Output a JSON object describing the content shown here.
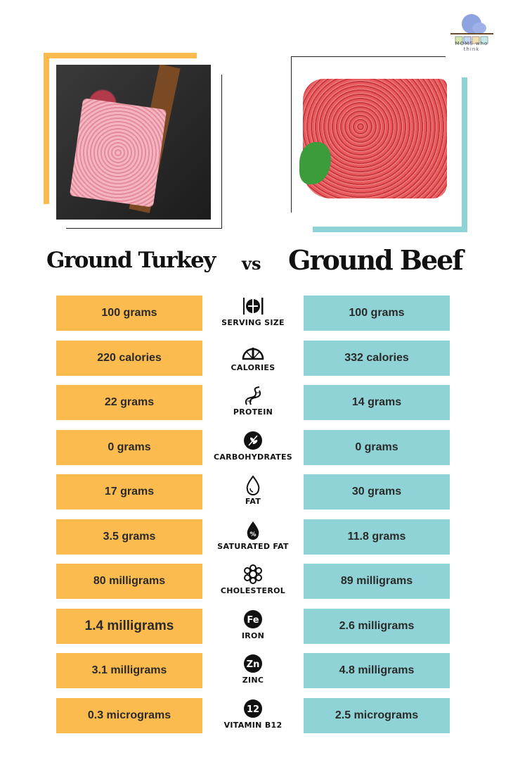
{
  "logo": {
    "text": "MOMS who think"
  },
  "titles": {
    "left": "Ground Turkey",
    "vs": "vs",
    "right": "Ground Beef"
  },
  "colors": {
    "turkey": "#fbbb4f",
    "beef": "#8fd3d6"
  },
  "rows": [
    {
      "label": "SERVING SIZE",
      "icon": "plate-cutlery-icon",
      "turkey": "100 grams",
      "beef": "100 grams"
    },
    {
      "label": "CALORIES",
      "icon": "gauge-icon",
      "turkey": "220 calories",
      "beef": "332 calories"
    },
    {
      "label": "PROTEIN",
      "icon": "dna-protein-icon",
      "turkey": "22 grams",
      "beef": "14 grams"
    },
    {
      "label": "CARBOHYDRATES",
      "icon": "wheat-icon",
      "turkey": "0 grams",
      "beef": "0 grams"
    },
    {
      "label": "FAT",
      "icon": "drop-icon",
      "turkey": "17 grams",
      "beef": "30 grams"
    },
    {
      "label": "SATURATED FAT",
      "icon": "drop-percent-icon",
      "turkey": "3.5 grams",
      "beef": "11.8 grams"
    },
    {
      "label": "CHOLESTEROL",
      "icon": "molecule-icon",
      "turkey": "80 milligrams",
      "beef": "89 milligrams"
    },
    {
      "label": "IRON",
      "icon": "fe-icon",
      "badge": "Fe",
      "turkey": "1.4 milligrams",
      "beef": "2.6 milligrams"
    },
    {
      "label": "ZINC",
      "icon": "zn-icon",
      "badge": "Zn",
      "turkey": "3.1 milligrams",
      "beef": "4.8 milligrams"
    },
    {
      "label": "VITAMIN B12",
      "icon": "b12-icon",
      "badge": "12",
      "turkey": "0.3 micrograms",
      "beef": "2.5 micrograms"
    }
  ]
}
